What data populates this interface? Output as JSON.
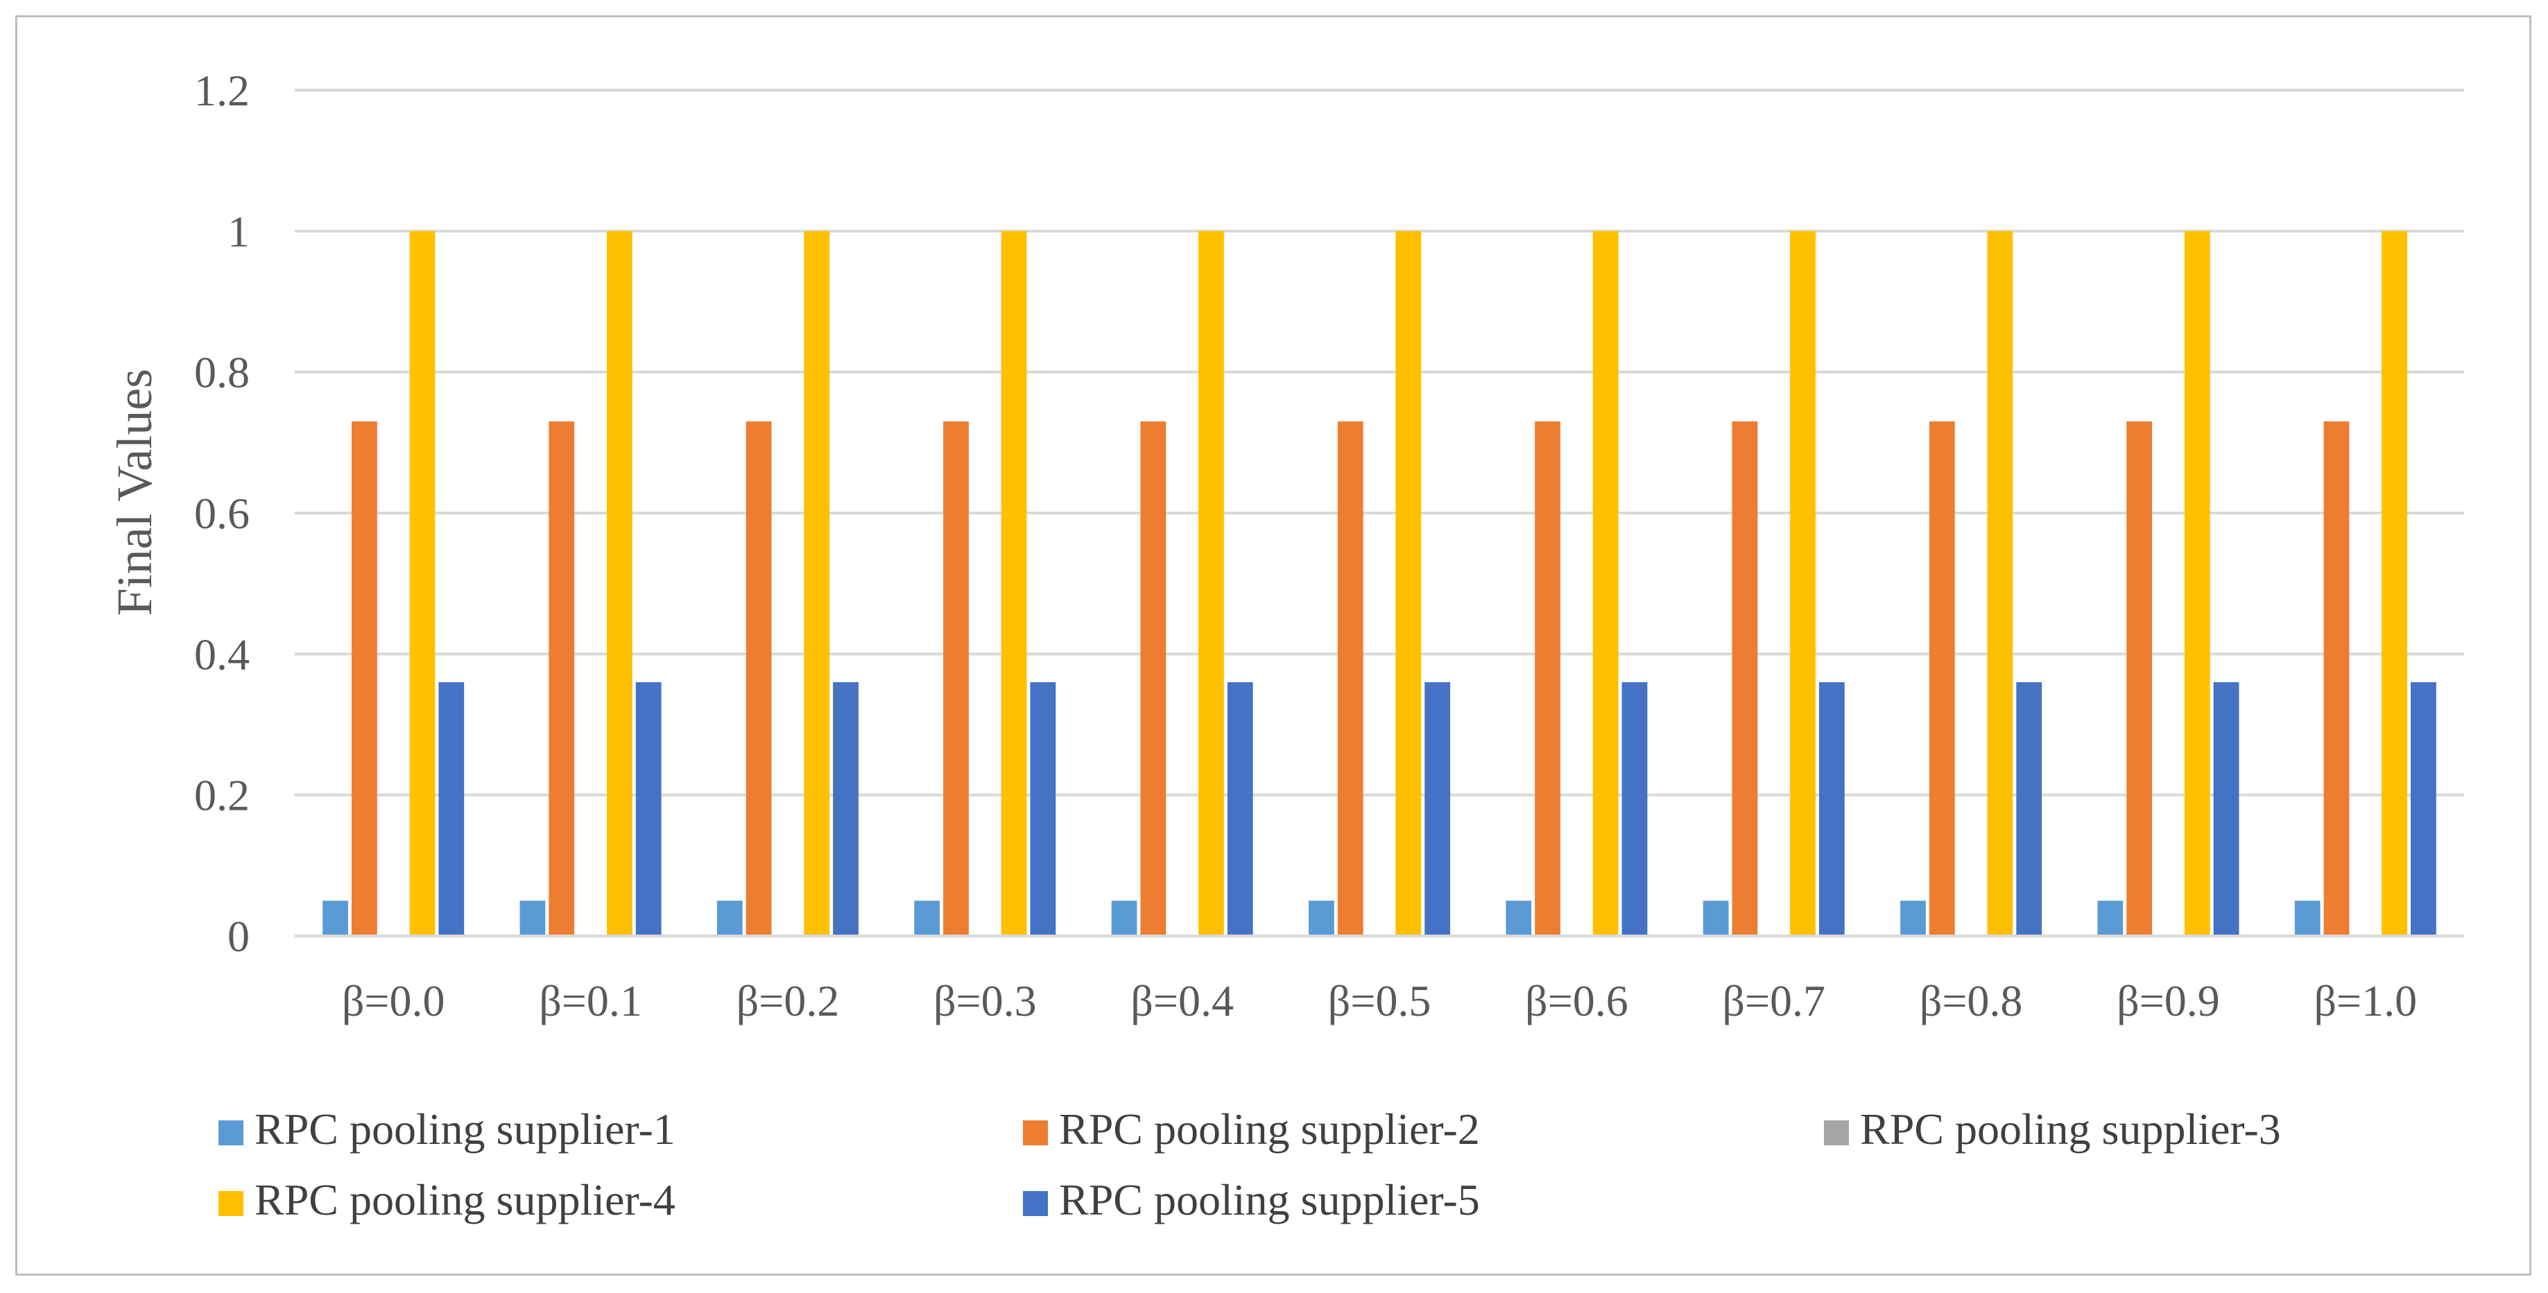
{
  "chart_data": {
    "type": "bar",
    "title": "",
    "xlabel": "",
    "ylabel": "Final Values",
    "ylim": [
      0,
      1.2
    ],
    "yticks": [
      0,
      0.2,
      0.4,
      0.6,
      0.8,
      1,
      1.2
    ],
    "ytick_labels": [
      "0",
      "0.2",
      "0.4",
      "0.6",
      "0.8",
      "1",
      "1.2"
    ],
    "grid": true,
    "legend_position": "bottom",
    "categories": [
      "β=0.0",
      "β=0.1",
      "β=0.2",
      "β=0.3",
      "β=0.4",
      "β=0.5",
      "β=0.6",
      "β=0.7",
      "β=0.8",
      "β=0.9",
      "β=1.0"
    ],
    "series": [
      {
        "name": "RPC pooling supplier-1",
        "color": "#5b9bd5",
        "values": [
          0.05,
          0.05,
          0.05,
          0.05,
          0.05,
          0.05,
          0.05,
          0.05,
          0.05,
          0.05,
          0.05
        ]
      },
      {
        "name": "RPC pooling supplier-2",
        "color": "#ed7d31",
        "values": [
          0.73,
          0.73,
          0.73,
          0.73,
          0.73,
          0.73,
          0.73,
          0.73,
          0.73,
          0.73,
          0.73
        ]
      },
      {
        "name": "RPC pooling supplier-3",
        "color": "#a5a5a5",
        "values": [
          0,
          0,
          0,
          0,
          0,
          0,
          0,
          0,
          0,
          0,
          0
        ]
      },
      {
        "name": "RPC pooling supplier-4",
        "color": "#ffc000",
        "values": [
          1,
          1,
          1,
          1,
          1,
          1,
          1,
          1,
          1,
          1,
          1
        ]
      },
      {
        "name": "RPC pooling supplier-5",
        "color": "#4472c4",
        "values": [
          0.36,
          0.36,
          0.36,
          0.36,
          0.36,
          0.36,
          0.36,
          0.36,
          0.36,
          0.36,
          0.36
        ]
      }
    ],
    "gridline_color": "#d9d9d9",
    "axis_color": "#d9d9d9"
  }
}
